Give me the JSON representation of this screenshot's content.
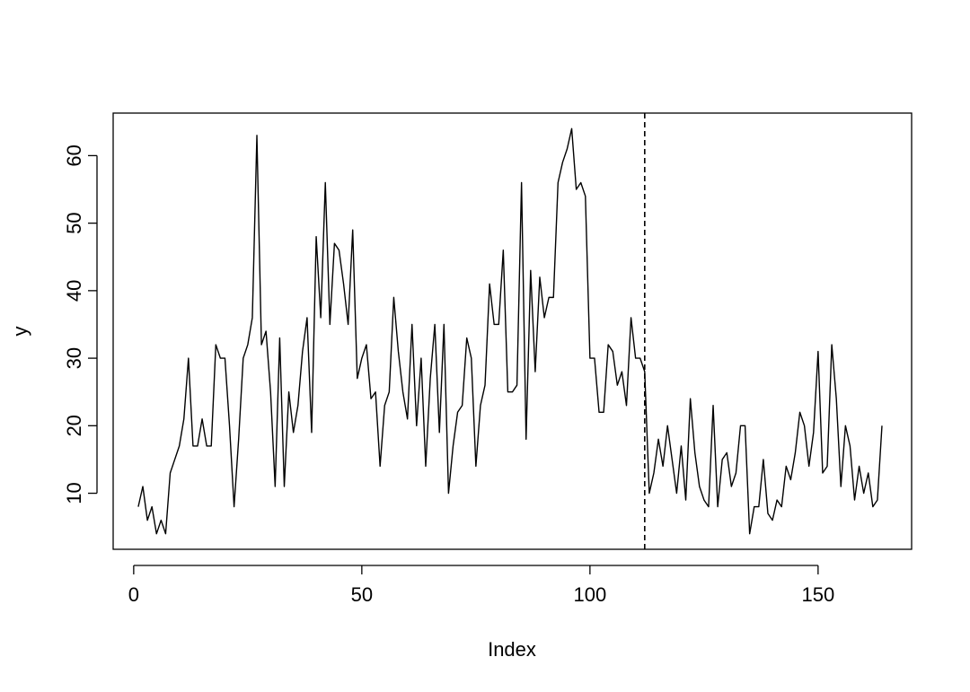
{
  "chart_data": {
    "type": "line",
    "title": "",
    "xlabel": "Index",
    "ylabel": "y",
    "xlim": [
      -4.5,
      170.5
    ],
    "ylim": [
      1.7,
      66.3
    ],
    "xticks": [
      0,
      50,
      100,
      150
    ],
    "yticks": [
      10,
      20,
      30,
      40,
      50,
      60
    ],
    "grid": false,
    "line_color": "#000000",
    "vline": {
      "x": 112,
      "style": "dashed"
    },
    "series": [
      {
        "x": [
          1,
          2,
          3,
          4,
          5,
          6,
          7,
          8,
          9,
          10,
          11,
          12,
          13,
          14,
          15,
          16,
          17,
          18,
          19,
          20,
          21,
          22,
          23,
          24,
          25,
          26,
          27,
          28,
          29,
          30,
          31,
          32,
          33,
          34,
          35,
          36,
          37,
          38,
          39,
          40,
          41,
          42,
          43,
          44,
          45,
          46,
          47,
          48,
          49,
          50,
          51,
          52,
          53,
          54,
          55,
          56,
          57,
          58,
          59,
          60,
          61,
          62,
          63,
          64,
          65,
          66,
          67,
          68,
          69,
          70,
          71,
          72,
          73,
          74,
          75,
          76,
          77,
          78,
          79,
          80,
          81,
          82,
          83,
          84,
          85,
          86,
          87,
          88,
          89,
          90,
          91,
          92,
          93,
          94,
          95,
          96,
          97,
          98,
          99,
          100,
          101,
          102,
          103,
          104,
          105,
          106,
          107,
          108,
          109,
          110,
          111,
          112,
          113,
          114,
          115,
          116,
          117,
          118,
          119,
          120,
          121,
          122,
          123,
          124,
          125,
          126,
          127,
          128,
          129,
          130,
          131,
          132,
          133,
          134,
          135,
          136,
          137,
          138,
          139,
          140,
          141,
          142,
          143,
          144,
          145,
          146,
          147,
          148,
          149,
          150,
          151,
          152,
          153,
          154,
          155,
          156,
          157,
          158,
          159,
          160,
          161,
          162,
          163,
          164
        ],
        "values": [
          8,
          11,
          6,
          8,
          4,
          6,
          4,
          13,
          15,
          17,
          21,
          30,
          17,
          17,
          21,
          17,
          17,
          32,
          30,
          30,
          20,
          8,
          18,
          30,
          32,
          36,
          63,
          32,
          34,
          25,
          11,
          33,
          11,
          25,
          19,
          23,
          31,
          36,
          19,
          48,
          36,
          56,
          35,
          47,
          46,
          41,
          35,
          49,
          27,
          30,
          32,
          24,
          25,
          14,
          23,
          25,
          39,
          31,
          25,
          21,
          35,
          20,
          30,
          14,
          27,
          35,
          19,
          35,
          10,
          17,
          22,
          23,
          33,
          30,
          14,
          23,
          26,
          41,
          35,
          35,
          46,
          25,
          25,
          26,
          56,
          18,
          43,
          28,
          42,
          36,
          39,
          39,
          56,
          59,
          61,
          64,
          55,
          56,
          54,
          30,
          30,
          22,
          22,
          32,
          31,
          26,
          28,
          23,
          36,
          30,
          30,
          28,
          10,
          13,
          18,
          14,
          20,
          15,
          10,
          17,
          9,
          24,
          16,
          11,
          9,
          8,
          23,
          8,
          15,
          16,
          11,
          13,
          20,
          20,
          4,
          8,
          8,
          15,
          7,
          6,
          9,
          8,
          14,
          12,
          16,
          22,
          20,
          14,
          19,
          31,
          13,
          14,
          32,
          24,
          11,
          20,
          17,
          9,
          14,
          10,
          13,
          8,
          9,
          20
        ]
      }
    ]
  }
}
